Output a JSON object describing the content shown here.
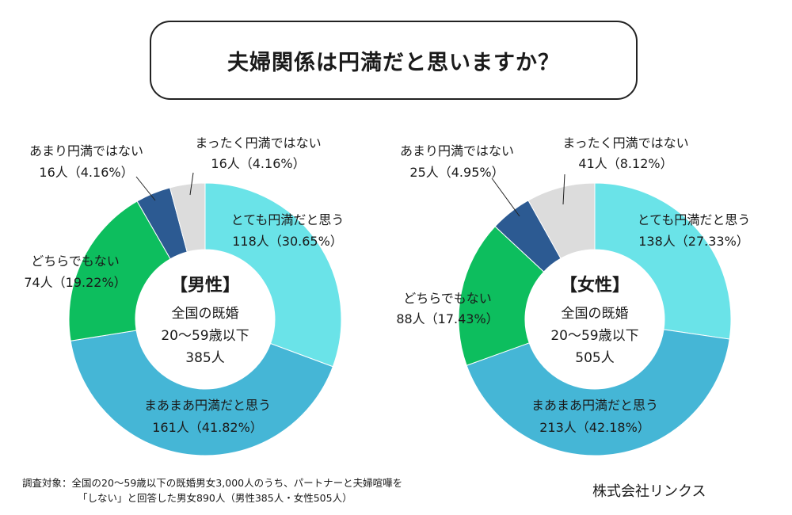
{
  "title": "夫婦関係は円満だと思いますか？",
  "chart_data": [
    {
      "type": "pie",
      "donut": true,
      "center": {
        "title": "【男性】",
        "lines": [
          "全国の既婚",
          "20〜59歳以下",
          "385人"
        ]
      },
      "colors": [
        "#6ae3e8",
        "#45b6d6",
        "#0dbe5e",
        "#2c5a92",
        "#dcdcdc"
      ],
      "slices": [
        {
          "label": "とても円満だと思う",
          "count_text": "118人（30.65%）",
          "value": 30.65
        },
        {
          "label": "まあまあ円満だと思う",
          "count_text": "161人（41.82%）",
          "value": 41.82
        },
        {
          "label": "どちらでもない",
          "count_text": "74人（19.22%）",
          "value": 19.22
        },
        {
          "label": "あまり円満ではない",
          "count_text": "16人（4.16%）",
          "value": 4.16
        },
        {
          "label": "まったく円満ではない",
          "count_text": "16人（4.16%）",
          "value": 4.16
        }
      ]
    },
    {
      "type": "pie",
      "donut": true,
      "center": {
        "title": "【女性】",
        "lines": [
          "全国の既婚",
          "20〜59歳以下",
          "505人"
        ]
      },
      "colors": [
        "#6ae3e8",
        "#45b6d6",
        "#0dbe5e",
        "#2c5a92",
        "#dcdcdc"
      ],
      "slices": [
        {
          "label": "とても円満だと思う",
          "count_text": "138人（27.33%）",
          "value": 27.33
        },
        {
          "label": "まあまあ円満だと思う",
          "count_text": "213人（42.18%）",
          "value": 42.18
        },
        {
          "label": "どちらでもない",
          "count_text": "88人（17.43%）",
          "value": 17.43
        },
        {
          "label": "あまり円満ではない",
          "count_text": "25人（4.95%）",
          "value": 4.95
        },
        {
          "label": "まったく円満ではない",
          "count_text": "41人（8.12%）",
          "value": 8.12
        }
      ]
    }
  ],
  "footnote": {
    "line1": "調査対象：全国の20〜59歳以下の既婚男女3,000人のうち、パートナーと夫婦喧嘩を",
    "line2": "「しない」と回答した男女890人（男性385人・女性505人）"
  },
  "company": "株式会社リンクス"
}
